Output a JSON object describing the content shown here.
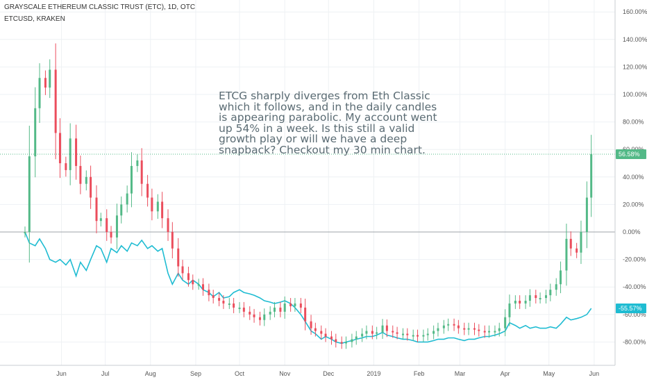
{
  "header": {
    "title": "GRAYSCALE ETHEREUM CLASSIC TRUST (ETC), 1D, OTC",
    "symbol": "ETCUSD, KRAKEN"
  },
  "annotation": {
    "text": "ETCG sharply diverges from Eth Classic which it follows, and in the daily candles is appearing parabolic. My account went up 54% in a week. Is this still a valid growth play or will we have a deep snapback? Checkout my 30 min chart."
  },
  "colors": {
    "up": "#53b987",
    "down": "#eb4d5c",
    "compare_line": "#1fbcd2",
    "badge_green": "#53b987",
    "badge_cyan": "#1fbcd2",
    "grid": "#eef1f4",
    "zero_line": "#9ea3a8"
  },
  "chart_data": {
    "type": "line",
    "title": "GRAYSCALE ETHEREUM CLASSIC TRUST (ETC), 1D, OTC",
    "x_ticks": [
      "Jun",
      "Jul",
      "Aug",
      "Sep",
      "Oct",
      "Nov",
      "Dec",
      "2019",
      "Feb",
      "Mar",
      "Apr",
      "May",
      "Jun"
    ],
    "y_ticks": [
      "160.00%",
      "140.00%",
      "120.00%",
      "100.00%",
      "80.00%",
      "60.00%",
      "40.00%",
      "20.00%",
      "0.00%",
      "-20.00%",
      "-40.00%",
      "-60.00%",
      "-80.00%"
    ],
    "ylim": [
      -90,
      162
    ],
    "grid": true,
    "price_badges": [
      {
        "label": "56.58%",
        "value": 56.58,
        "series": "ETCG"
      },
      {
        "label": "-55.57%",
        "value": -55.57,
        "series": "ETCUSD, KRAKEN"
      }
    ],
    "series": [
      {
        "name": "ETCG",
        "style": "candlestick",
        "points": [
          [
            "2018-05-07",
            0
          ],
          [
            "2018-05-10",
            55
          ],
          [
            "2018-05-14",
            90
          ],
          [
            "2018-05-17",
            112
          ],
          [
            "2018-05-21",
            105
          ],
          [
            "2018-05-24",
            118
          ],
          [
            "2018-05-28",
            72
          ],
          [
            "2018-05-31",
            50
          ],
          [
            "2018-06-04",
            45
          ],
          [
            "2018-06-07",
            68
          ],
          [
            "2018-06-11",
            48
          ],
          [
            "2018-06-14",
            35
          ],
          [
            "2018-06-18",
            40
          ],
          [
            "2018-06-21",
            25
          ],
          [
            "2018-06-25",
            8
          ],
          [
            "2018-06-28",
            10
          ],
          [
            "2018-07-02",
            0
          ],
          [
            "2018-07-05",
            -4
          ],
          [
            "2018-07-09",
            12
          ],
          [
            "2018-07-12",
            20
          ],
          [
            "2018-07-16",
            28
          ],
          [
            "2018-07-19",
            48
          ],
          [
            "2018-07-23",
            52
          ],
          [
            "2018-07-26",
            35
          ],
          [
            "2018-07-30",
            25
          ],
          [
            "2018-08-02",
            15
          ],
          [
            "2018-08-06",
            22
          ],
          [
            "2018-08-09",
            10
          ],
          [
            "2018-08-13",
            0
          ],
          [
            "2018-08-16",
            -12
          ],
          [
            "2018-08-20",
            -25
          ],
          [
            "2018-08-23",
            -30
          ],
          [
            "2018-08-27",
            -35
          ],
          [
            "2018-08-30",
            -38
          ],
          [
            "2018-09-03",
            -38
          ],
          [
            "2018-09-06",
            -42
          ],
          [
            "2018-09-10",
            -46
          ],
          [
            "2018-09-13",
            -48
          ],
          [
            "2018-09-17",
            -50
          ],
          [
            "2018-09-20",
            -52
          ],
          [
            "2018-09-24",
            -52
          ],
          [
            "2018-09-27",
            -55
          ],
          [
            "2018-10-01",
            -55
          ],
          [
            "2018-10-04",
            -58
          ],
          [
            "2018-10-08",
            -60
          ],
          [
            "2018-10-11",
            -62
          ],
          [
            "2018-10-15",
            -64
          ],
          [
            "2018-10-18",
            -60
          ],
          [
            "2018-10-22",
            -58
          ],
          [
            "2018-10-25",
            -55
          ],
          [
            "2018-10-29",
            -58
          ],
          [
            "2018-11-01",
            -52
          ],
          [
            "2018-11-05",
            -54
          ],
          [
            "2018-11-08",
            -52
          ],
          [
            "2018-11-12",
            -55
          ],
          [
            "2018-11-15",
            -65
          ],
          [
            "2018-11-19",
            -70
          ],
          [
            "2018-11-22",
            -72
          ],
          [
            "2018-11-26",
            -74
          ],
          [
            "2018-11-29",
            -76
          ],
          [
            "2018-12-03",
            -78
          ],
          [
            "2018-12-06",
            -80
          ],
          [
            "2018-12-10",
            -81
          ],
          [
            "2018-12-13",
            -80
          ],
          [
            "2018-12-17",
            -78
          ],
          [
            "2018-12-20",
            -76
          ],
          [
            "2018-12-24",
            -74
          ],
          [
            "2018-12-27",
            -72
          ],
          [
            "2018-12-31",
            -74
          ],
          [
            "2019-01-03",
            -73
          ],
          [
            "2019-01-07",
            -68
          ],
          [
            "2019-01-10",
            -72
          ],
          [
            "2019-01-14",
            -73
          ],
          [
            "2019-01-17",
            -74
          ],
          [
            "2019-01-21",
            -74
          ],
          [
            "2019-01-24",
            -75
          ],
          [
            "2019-01-28",
            -75
          ],
          [
            "2019-01-31",
            -76
          ],
          [
            "2019-02-04",
            -75
          ],
          [
            "2019-02-07",
            -74
          ],
          [
            "2019-02-11",
            -72
          ],
          [
            "2019-02-14",
            -70
          ],
          [
            "2019-02-18",
            -68
          ],
          [
            "2019-02-21",
            -67
          ],
          [
            "2019-02-25",
            -68
          ],
          [
            "2019-02-28",
            -70
          ],
          [
            "2019-03-04",
            -71
          ],
          [
            "2019-03-07",
            -70
          ],
          [
            "2019-03-11",
            -71
          ],
          [
            "2019-03-14",
            -72
          ],
          [
            "2019-03-18",
            -73
          ],
          [
            "2019-03-21",
            -72
          ],
          [
            "2019-03-25",
            -72
          ],
          [
            "2019-03-28",
            -70
          ],
          [
            "2019-04-01",
            -62
          ],
          [
            "2019-04-04",
            -52
          ],
          [
            "2019-04-08",
            -50
          ],
          [
            "2019-04-11",
            -52
          ],
          [
            "2019-04-15",
            -50
          ],
          [
            "2019-04-18",
            -46
          ],
          [
            "2019-04-22",
            -48
          ],
          [
            "2019-04-25",
            -48
          ],
          [
            "2019-04-29",
            -46
          ],
          [
            "2019-05-02",
            -42
          ],
          [
            "2019-05-06",
            -38
          ],
          [
            "2019-05-09",
            -28
          ],
          [
            "2019-05-13",
            -5
          ],
          [
            "2019-05-16",
            -12
          ],
          [
            "2019-05-20",
            -15
          ],
          [
            "2019-05-23",
            0
          ],
          [
            "2019-05-27",
            25
          ],
          [
            "2019-05-30",
            56.58
          ]
        ]
      },
      {
        "name": "ETCUSD, KRAKEN",
        "style": "line",
        "points": [
          [
            "2018-05-07",
            0
          ],
          [
            "2018-05-10",
            -8
          ],
          [
            "2018-05-14",
            -10
          ],
          [
            "2018-05-17",
            -5
          ],
          [
            "2018-05-21",
            -12
          ],
          [
            "2018-05-24",
            -20
          ],
          [
            "2018-05-28",
            -22
          ],
          [
            "2018-05-31",
            -20
          ],
          [
            "2018-06-04",
            -24
          ],
          [
            "2018-06-07",
            -20
          ],
          [
            "2018-06-11",
            -32
          ],
          [
            "2018-06-14",
            -22
          ],
          [
            "2018-06-18",
            -28
          ],
          [
            "2018-06-21",
            -20
          ],
          [
            "2018-06-25",
            -10
          ],
          [
            "2018-06-28",
            -12
          ],
          [
            "2018-07-02",
            -22
          ],
          [
            "2018-07-05",
            -12
          ],
          [
            "2018-07-09",
            -15
          ],
          [
            "2018-07-12",
            -10
          ],
          [
            "2018-07-16",
            -14
          ],
          [
            "2018-07-19",
            -8
          ],
          [
            "2018-07-23",
            -10
          ],
          [
            "2018-07-26",
            -6
          ],
          [
            "2018-07-30",
            -12
          ],
          [
            "2018-08-02",
            -10
          ],
          [
            "2018-08-06",
            -14
          ],
          [
            "2018-08-09",
            -12
          ],
          [
            "2018-08-13",
            -30
          ],
          [
            "2018-08-16",
            -38
          ],
          [
            "2018-08-20",
            -30
          ],
          [
            "2018-08-23",
            -35
          ],
          [
            "2018-08-27",
            -38
          ],
          [
            "2018-08-30",
            -35
          ],
          [
            "2018-09-03",
            -38
          ],
          [
            "2018-09-06",
            -42
          ],
          [
            "2018-09-10",
            -44
          ],
          [
            "2018-09-13",
            -47
          ],
          [
            "2018-09-17",
            -44
          ],
          [
            "2018-09-20",
            -48
          ],
          [
            "2018-09-24",
            -47
          ],
          [
            "2018-09-27",
            -44
          ],
          [
            "2018-10-01",
            -42
          ],
          [
            "2018-10-04",
            -44
          ],
          [
            "2018-10-08",
            -45
          ],
          [
            "2018-10-11",
            -46
          ],
          [
            "2018-10-15",
            -48
          ],
          [
            "2018-10-18",
            -50
          ],
          [
            "2018-10-22",
            -51
          ],
          [
            "2018-10-25",
            -52
          ],
          [
            "2018-10-29",
            -51
          ],
          [
            "2018-11-01",
            -50
          ],
          [
            "2018-11-05",
            -52
          ],
          [
            "2018-11-08",
            -55
          ],
          [
            "2018-11-12",
            -60
          ],
          [
            "2018-11-15",
            -65
          ],
          [
            "2018-11-19",
            -72
          ],
          [
            "2018-11-22",
            -74
          ],
          [
            "2018-11-26",
            -78
          ],
          [
            "2018-11-29",
            -76
          ],
          [
            "2018-12-03",
            -78
          ],
          [
            "2018-12-06",
            -80
          ],
          [
            "2018-12-10",
            -81
          ],
          [
            "2018-12-13",
            -80
          ],
          [
            "2018-12-17",
            -79
          ],
          [
            "2018-12-20",
            -78
          ],
          [
            "2018-12-24",
            -77
          ],
          [
            "2018-12-27",
            -76
          ],
          [
            "2018-12-31",
            -76
          ],
          [
            "2019-01-03",
            -75
          ],
          [
            "2019-01-07",
            -73
          ],
          [
            "2019-01-10",
            -75
          ],
          [
            "2019-01-14",
            -76
          ],
          [
            "2019-01-17",
            -77
          ],
          [
            "2019-01-21",
            -78
          ],
          [
            "2019-01-24",
            -78
          ],
          [
            "2019-01-28",
            -79
          ],
          [
            "2019-01-31",
            -80
          ],
          [
            "2019-02-04",
            -80
          ],
          [
            "2019-02-07",
            -80
          ],
          [
            "2019-02-11",
            -79
          ],
          [
            "2019-02-14",
            -78
          ],
          [
            "2019-02-18",
            -78
          ],
          [
            "2019-02-21",
            -77
          ],
          [
            "2019-02-25",
            -77
          ],
          [
            "2019-02-28",
            -78
          ],
          [
            "2019-03-04",
            -79
          ],
          [
            "2019-03-07",
            -78
          ],
          [
            "2019-03-11",
            -78
          ],
          [
            "2019-03-14",
            -77
          ],
          [
            "2019-03-18",
            -76
          ],
          [
            "2019-03-21",
            -76
          ],
          [
            "2019-03-25",
            -75
          ],
          [
            "2019-03-28",
            -74
          ],
          [
            "2019-04-01",
            -72
          ],
          [
            "2019-04-04",
            -66
          ],
          [
            "2019-04-08",
            -68
          ],
          [
            "2019-04-11",
            -70
          ],
          [
            "2019-04-15",
            -68
          ],
          [
            "2019-04-18",
            -70
          ],
          [
            "2019-04-22",
            -69
          ],
          [
            "2019-04-25",
            -70
          ],
          [
            "2019-04-29",
            -70
          ],
          [
            "2019-05-02",
            -69
          ],
          [
            "2019-05-06",
            -70
          ],
          [
            "2019-05-09",
            -67
          ],
          [
            "2019-05-13",
            -62
          ],
          [
            "2019-05-16",
            -64
          ],
          [
            "2019-05-20",
            -63
          ],
          [
            "2019-05-23",
            -62
          ],
          [
            "2019-05-27",
            -60
          ],
          [
            "2019-05-30",
            -55.57
          ]
        ]
      }
    ]
  }
}
